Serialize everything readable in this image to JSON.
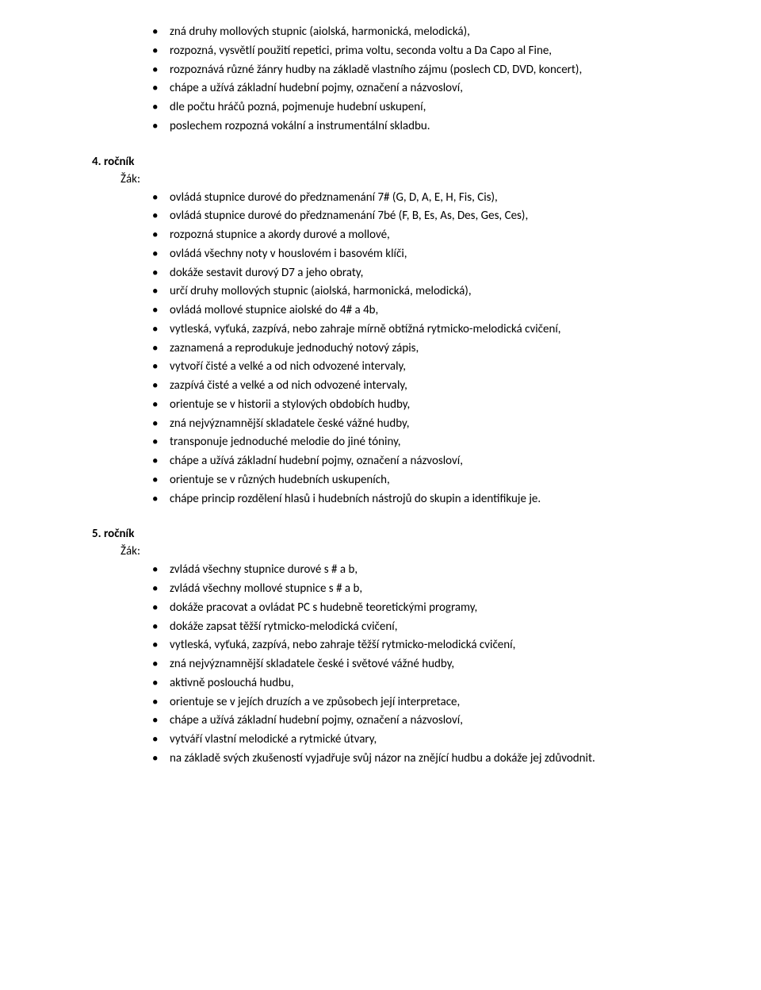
{
  "topList": [
    "zná druhy mollových stupnic (aiolská, harmonická, melodická),",
    "rozpozná, vysvětlí použití repetici, prima voltu, seconda voltu a Da Capo al Fine,",
    "rozpoznává různé žánry hudby na základě vlastního zájmu (poslech CD, DVD, koncert),",
    "chápe a užívá základní hudební pojmy, označení a názvosloví,",
    "dle počtu hráčů pozná, pojmenuje hudební uskupení,",
    "poslechem rozpozná vokální a instrumentální skladbu."
  ],
  "section4": {
    "heading": "4. ročník",
    "label": "Žák:",
    "items": [
      "ovládá stupnice durové do předznamenání 7# (G, D, A, E, H, Fis, Cis),",
      "ovládá stupnice durové do předznamenání 7bé (F, B, Es, As, Des, Ges, Ces),",
      "rozpozná stupnice a akordy durové a mollové,",
      "ovládá všechny noty v houslovém i basovém klíči,",
      "dokáže sestavit durový D7 a jeho obraty,",
      "určí druhy mollových stupnic (aiolská, harmonická, melodická),",
      "ovládá mollové stupnice aiolské do 4# a 4b,",
      "vytleská, vyťuká, zazpívá, nebo zahraje mírně obtížná rytmicko-melodická cvičení,",
      "zaznamená a reprodukuje jednoduchý notový zápis,",
      "vytvoří čisté a velké a od nich odvozené intervaly,",
      "zazpívá čisté a velké a od nich odvozené intervaly,",
      "orientuje se v historii a stylových obdobích hudby,",
      "zná nejvýznamnější skladatele české vážné hudby,",
      "transponuje jednoduché melodie do jiné tóniny,",
      "chápe a užívá základní hudební pojmy, označení a názvosloví,",
      "orientuje se v různých hudebních uskupeních,",
      "chápe princip rozdělení hlasů i hudebních nástrojů do skupin a identifikuje je."
    ]
  },
  "section5": {
    "heading": "5. ročník",
    "label": "Žák:",
    "items": [
      "zvládá všechny stupnice durové s # a b,",
      "zvládá všechny mollové stupnice s # a b,",
      "dokáže pracovat a ovládat PC s hudebně teoretickými programy,",
      "dokáže zapsat těžší rytmicko-melodická cvičení,",
      "vytleská, vyťuká, zazpívá, nebo zahraje těžší rytmicko-melodická cvičení,",
      "zná nejvýznamnější skladatele české i světové vážné hudby,",
      "aktivně poslouchá hudbu,",
      "orientuje se v jejích druzích a ve způsobech její interpretace,",
      "chápe a užívá základní hudební pojmy, označení a názvosloví,",
      "vytváří vlastní melodické a rytmické útvary,",
      "na základě svých zkušeností vyjadřuje svůj názor na znějící hudbu a dokáže jej zdůvodnit."
    ]
  }
}
